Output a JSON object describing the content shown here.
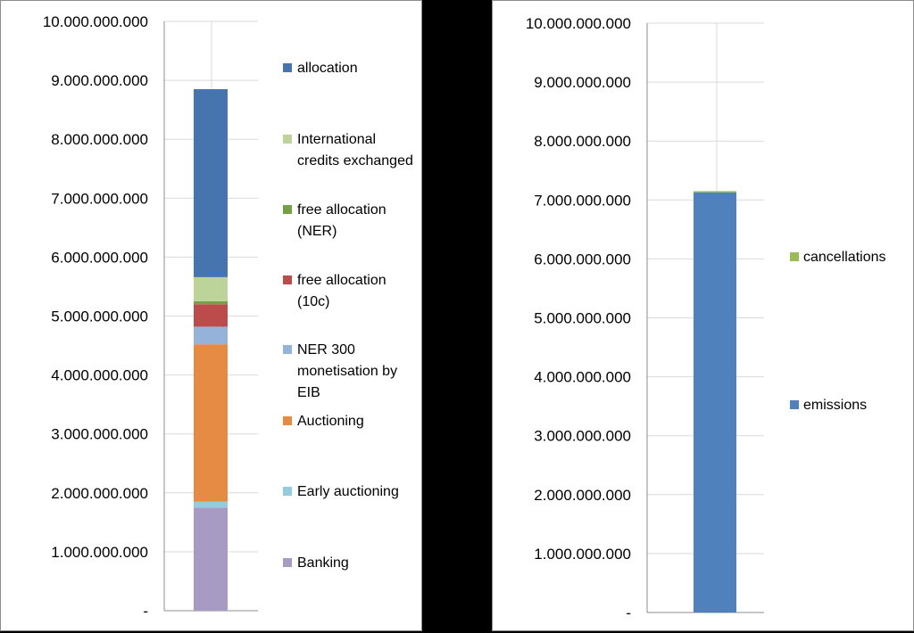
{
  "chart_data": [
    {
      "type": "bar",
      "stacked": true,
      "categories": [
        ""
      ],
      "ylim": [
        0,
        10000000000
      ],
      "y_ticks": [
        "-",
        "1.000.000.000",
        "2.000.000.000",
        "3.000.000.000",
        "4.000.000.000",
        "5.000.000.000",
        "6.000.000.000",
        "7.000.000.000",
        "8.000.000.000",
        "9.000.000.000",
        "10.000.000.000"
      ],
      "grid": true,
      "legend_position": "right",
      "series": [
        {
          "name": "Banking",
          "values": [
            1750000000
          ],
          "color": "#a79bc4"
        },
        {
          "name": "Early auctioning",
          "values": [
            100000000
          ],
          "color": "#93cddd"
        },
        {
          "name": "Auctioning",
          "values": [
            2670000000
          ],
          "color": "#e58b44"
        },
        {
          "name": "NER 300 monetisation by EIB",
          "values": [
            300000000
          ],
          "color": "#95b2d8"
        },
        {
          "name": "free allocation (10c)",
          "values": [
            380000000
          ],
          "color": "#bc4b4b"
        },
        {
          "name": "free allocation (NER)",
          "values": [
            50000000
          ],
          "color": "#76a046"
        },
        {
          "name": "International credits exchanged",
          "values": [
            410000000
          ],
          "color": "#bcd49a"
        },
        {
          "name": "allocation",
          "values": [
            3190000000
          ],
          "color": "#4674ae"
        }
      ]
    },
    {
      "type": "bar",
      "stacked": true,
      "categories": [
        ""
      ],
      "ylim": [
        0,
        10000000000
      ],
      "y_ticks": [
        "-",
        "1.000.000.000",
        "2.000.000.000",
        "3.000.000.000",
        "4.000.000.000",
        "5.000.000.000",
        "6.000.000.000",
        "7.000.000.000",
        "8.000.000.000",
        "9.000.000.000",
        "10.000.000.000"
      ],
      "grid": true,
      "legend_position": "right",
      "series": [
        {
          "name": "emissions",
          "values": [
            7130000000
          ],
          "color": "#4f81bd"
        },
        {
          "name": "cancellations",
          "values": [
            20000000
          ],
          "color": "#9bbb59"
        }
      ]
    }
  ]
}
